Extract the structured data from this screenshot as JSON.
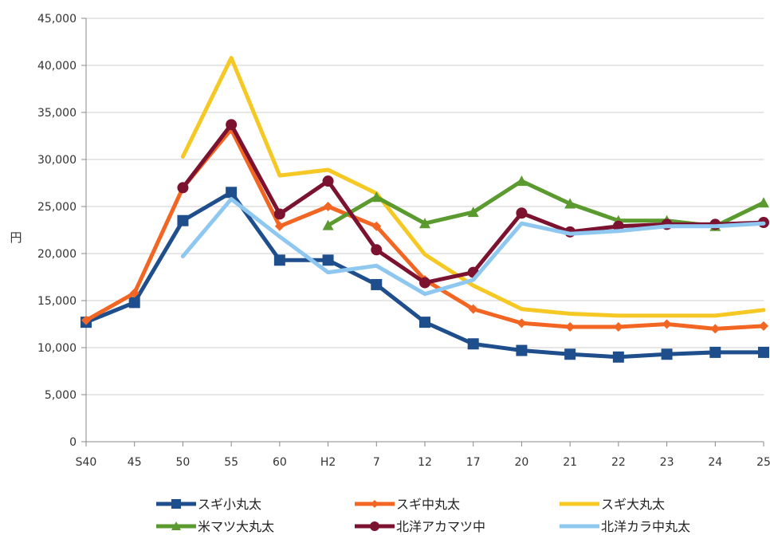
{
  "chart_data": {
    "type": "line",
    "title": "",
    "xlabel": "",
    "ylabel": "円",
    "ylim": [
      0,
      45000
    ],
    "yticks": [
      0,
      5000,
      10000,
      15000,
      20000,
      25000,
      30000,
      35000,
      40000,
      45000
    ],
    "ytick_labels": [
      "0",
      "5,000",
      "10,000",
      "15,000",
      "20,000",
      "25,000",
      "30,000",
      "35,000",
      "40,000",
      "45,000"
    ],
    "categories": [
      "S40",
      "45",
      "50",
      "55",
      "60",
      "H2",
      "7",
      "12",
      "17",
      "20",
      "21",
      "22",
      "23",
      "24",
      "25"
    ],
    "grid": "horizontal",
    "legend_position": "bottom",
    "series": [
      {
        "name": "スギ小丸太",
        "color": "#1f4e8c",
        "marker": "square",
        "values": [
          12700,
          14800,
          23500,
          26500,
          19300,
          19300,
          16700,
          12700,
          10400,
          9700,
          9300,
          9000,
          9300,
          9500,
          9500
        ]
      },
      {
        "name": "スギ中丸太",
        "color": "#f26522",
        "marker": "diamond",
        "values": [
          12900,
          15800,
          27000,
          33200,
          22900,
          25000,
          22900,
          17200,
          14100,
          12600,
          12200,
          12200,
          12500,
          12000,
          12300
        ]
      },
      {
        "name": "スギ大丸太",
        "color": "#f5c823",
        "marker": "none",
        "values": [
          null,
          null,
          30300,
          40800,
          28300,
          28900,
          26400,
          19900,
          16600,
          14100,
          13600,
          13400,
          13400,
          13400,
          14000
        ]
      },
      {
        "name": "米マツ大丸太",
        "color": "#5b9a2f",
        "marker": "triangle",
        "values": [
          null,
          null,
          null,
          null,
          null,
          23000,
          26000,
          23200,
          24400,
          27700,
          25300,
          23500,
          23500,
          22900,
          25400
        ]
      },
      {
        "name": "北洋アカマツ中",
        "color": "#7b1230",
        "marker": "circle",
        "values": [
          null,
          null,
          27000,
          33700,
          24200,
          27700,
          20400,
          16900,
          18000,
          24300,
          22300,
          22900,
          23100,
          23100,
          23300
        ]
      },
      {
        "name": "北洋カラ中丸太",
        "color": "#8ec8f0",
        "marker": "none",
        "values": [
          null,
          null,
          19700,
          25800,
          21800,
          18000,
          18700,
          15700,
          17200,
          23200,
          22100,
          22400,
          22900,
          22900,
          23200
        ]
      }
    ]
  }
}
